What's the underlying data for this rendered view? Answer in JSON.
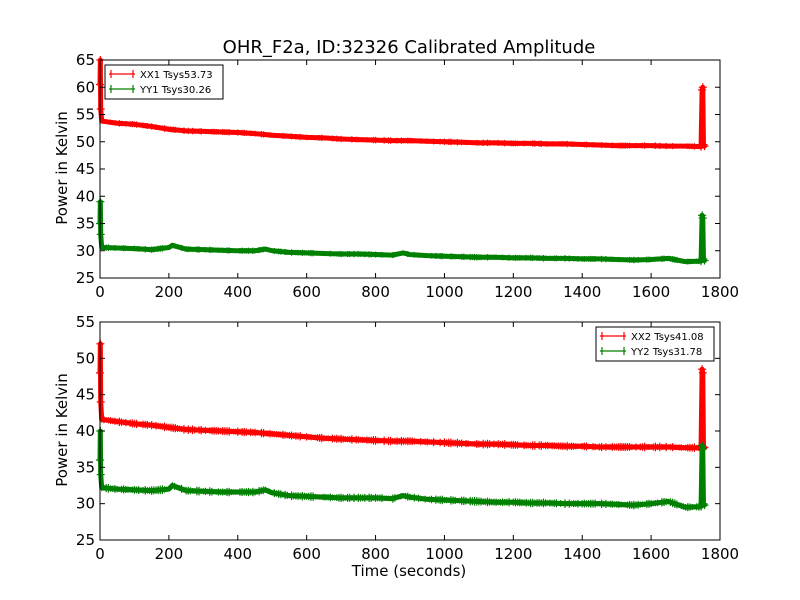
{
  "chart_data": [
    {
      "type": "line",
      "title": "OHR_F2a, ID:32326 Calibrated Amplitude",
      "xlabel": "",
      "ylabel": "Power in Kelvin",
      "xlim": [
        0,
        1800
      ],
      "ylim": [
        25,
        65
      ],
      "xticks": [
        0,
        200,
        400,
        600,
        800,
        1000,
        1200,
        1400,
        1600,
        1800
      ],
      "yticks": [
        25,
        30,
        35,
        40,
        45,
        50,
        55,
        60,
        65
      ],
      "legend_position": "top-left",
      "series": [
        {
          "name": "XX1 Tsys53.73",
          "color": "#ff0000",
          "x": [
            0,
            1,
            2,
            5,
            50,
            100,
            150,
            200,
            250,
            300,
            350,
            400,
            450,
            500,
            550,
            600,
            650,
            700,
            750,
            800,
            850,
            900,
            950,
            1000,
            1050,
            1100,
            1150,
            1200,
            1250,
            1300,
            1350,
            1400,
            1450,
            1500,
            1550,
            1600,
            1650,
            1700,
            1745,
            1748,
            1750,
            1752,
            1755
          ],
          "y": [
            60.5,
            65.0,
            56.0,
            53.8,
            53.4,
            53.2,
            52.8,
            52.3,
            52.0,
            51.9,
            51.8,
            51.7,
            51.5,
            51.2,
            51.0,
            50.8,
            50.7,
            50.5,
            50.4,
            50.3,
            50.2,
            50.2,
            50.1,
            50.0,
            49.9,
            49.8,
            49.8,
            49.7,
            49.7,
            49.6,
            49.6,
            49.5,
            49.4,
            49.3,
            49.3,
            49.3,
            49.2,
            49.2,
            49.1,
            59.5,
            60.0,
            49.5,
            49.2
          ]
        },
        {
          "name": "YY1 Tsys30.26",
          "color": "#008000",
          "x": [
            0,
            1,
            2,
            5,
            50,
            100,
            150,
            200,
            210,
            250,
            300,
            350,
            400,
            450,
            480,
            500,
            550,
            600,
            650,
            700,
            750,
            800,
            850,
            880,
            900,
            950,
            1000,
            1050,
            1100,
            1150,
            1200,
            1250,
            1300,
            1350,
            1400,
            1450,
            1500,
            1550,
            1600,
            1650,
            1700,
            1745,
            1748,
            1750,
            1752,
            1755
          ],
          "y": [
            35.0,
            39.0,
            33.0,
            30.6,
            30.5,
            30.4,
            30.2,
            30.6,
            31.0,
            30.3,
            30.2,
            30.1,
            30.0,
            30.0,
            30.3,
            30.0,
            29.7,
            29.6,
            29.5,
            29.4,
            29.4,
            29.3,
            29.2,
            29.6,
            29.3,
            29.1,
            29.0,
            28.9,
            28.8,
            28.8,
            28.7,
            28.7,
            28.6,
            28.6,
            28.5,
            28.5,
            28.4,
            28.3,
            28.4,
            28.6,
            28.0,
            28.1,
            36.5,
            36.0,
            28.5,
            28.2
          ]
        }
      ]
    },
    {
      "type": "line",
      "title": "",
      "xlabel": "Time (seconds)",
      "ylabel": "Power in Kelvin",
      "xlim": [
        0,
        1800
      ],
      "ylim": [
        25,
        55
      ],
      "xticks": [
        0,
        200,
        400,
        600,
        800,
        1000,
        1200,
        1400,
        1600,
        1800
      ],
      "yticks": [
        25,
        30,
        35,
        40,
        45,
        50,
        55
      ],
      "legend_position": "top-right",
      "series": [
        {
          "name": "XX2 Tsys41.08",
          "color": "#ff0000",
          "x": [
            0,
            1,
            2,
            5,
            50,
            100,
            150,
            200,
            250,
            300,
            350,
            400,
            450,
            500,
            550,
            600,
            650,
            700,
            750,
            800,
            850,
            900,
            950,
            1000,
            1050,
            1100,
            1150,
            1200,
            1250,
            1300,
            1350,
            1400,
            1450,
            1500,
            1550,
            1600,
            1650,
            1700,
            1745,
            1748,
            1750,
            1752,
            1755
          ],
          "y": [
            48.0,
            52.0,
            44.0,
            41.6,
            41.3,
            41.0,
            40.8,
            40.5,
            40.2,
            40.1,
            40.0,
            39.9,
            39.8,
            39.6,
            39.4,
            39.2,
            39.0,
            38.9,
            38.8,
            38.7,
            38.6,
            38.6,
            38.5,
            38.4,
            38.3,
            38.2,
            38.2,
            38.1,
            38.0,
            38.0,
            37.9,
            37.9,
            37.8,
            37.8,
            37.8,
            37.8,
            37.8,
            37.7,
            37.7,
            48.5,
            48.0,
            37.8,
            37.7
          ]
        },
        {
          "name": "YY2 Tsys31.78",
          "color": "#008000",
          "x": [
            0,
            1,
            2,
            5,
            50,
            100,
            150,
            200,
            210,
            250,
            300,
            350,
            400,
            450,
            480,
            500,
            550,
            600,
            650,
            700,
            750,
            800,
            850,
            880,
            900,
            950,
            1000,
            1050,
            1100,
            1150,
            1200,
            1250,
            1300,
            1350,
            1400,
            1450,
            1500,
            1550,
            1600,
            1650,
            1700,
            1745,
            1748,
            1750,
            1752,
            1755
          ],
          "y": [
            36.0,
            40.0,
            34.0,
            32.2,
            32.0,
            31.9,
            31.8,
            32.0,
            32.5,
            31.8,
            31.7,
            31.6,
            31.6,
            31.6,
            31.9,
            31.5,
            31.1,
            31.0,
            30.9,
            30.8,
            30.8,
            30.8,
            30.7,
            31.1,
            30.9,
            30.6,
            30.5,
            30.4,
            30.3,
            30.2,
            30.2,
            30.1,
            30.1,
            30.0,
            30.0,
            30.0,
            29.9,
            29.8,
            30.0,
            30.3,
            29.5,
            29.6,
            38.0,
            37.5,
            30.0,
            29.8
          ]
        }
      ]
    }
  ]
}
